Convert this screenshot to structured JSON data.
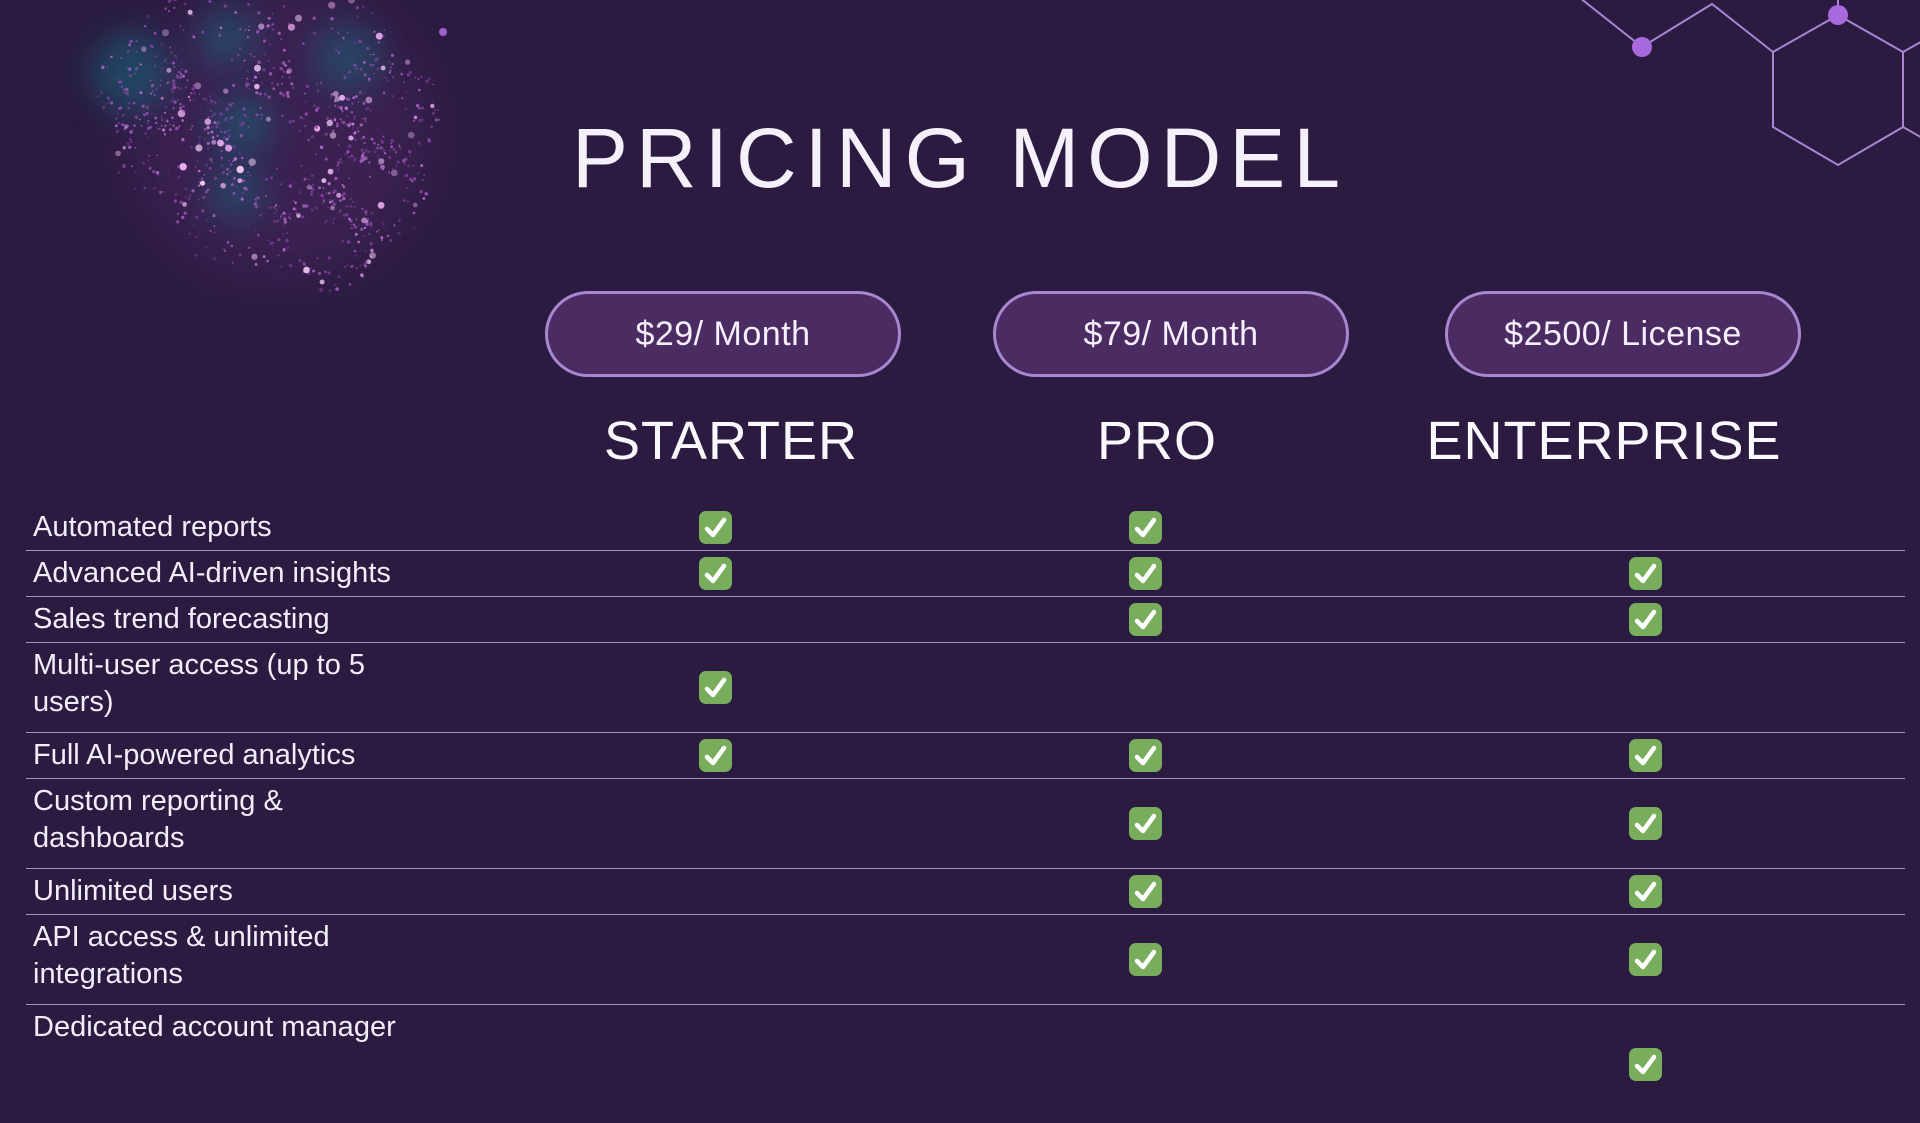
{
  "slide": {
    "title": "PRICING MODEL"
  },
  "plans": [
    {
      "name": "STARTER",
      "price": "$29/ Month"
    },
    {
      "name": "PRO",
      "price": "$79/ Month"
    },
    {
      "name": "ENTERPRISE",
      "price": "$2500/ License"
    }
  ],
  "features": [
    {
      "label_lines": [
        "Automated reports"
      ],
      "checks": [
        true,
        true,
        false
      ]
    },
    {
      "label_lines": [
        "Advanced AI-driven insights"
      ],
      "checks": [
        true,
        true,
        true
      ]
    },
    {
      "label_lines": [
        "Sales trend forecasting"
      ],
      "checks": [
        false,
        true,
        true
      ]
    },
    {
      "label_lines": [
        "Multi-user access (up to 5",
        "users)"
      ],
      "checks": [
        true,
        false,
        false
      ]
    },
    {
      "label_lines": [
        "Full AI-powered analytics"
      ],
      "checks": [
        true,
        true,
        true
      ]
    },
    {
      "label_lines": [
        "Custom reporting &",
        "dashboards"
      ],
      "checks": [
        false,
        true,
        true
      ]
    },
    {
      "label_lines": [
        "Unlimited users"
      ],
      "checks": [
        false,
        true,
        true
      ]
    },
    {
      "label_lines": [
        "API access & unlimited",
        "integrations"
      ],
      "checks": [
        false,
        true,
        true
      ]
    },
    {
      "label_lines": [
        "Dedicated account manager"
      ],
      "checks": [
        false,
        false,
        true
      ]
    }
  ],
  "icons": {
    "check": "check-icon",
    "check_glyph": "✓"
  },
  "colors": {
    "background": "#2b1b40",
    "pill_fill": "#4a2b62",
    "pill_border": "#a787cf",
    "check_green": "#77ad5b",
    "row_line": "#cfc5de",
    "text": "#f2edf8",
    "accent_dot": "#a869dd",
    "teal_glow": "#19667c"
  }
}
